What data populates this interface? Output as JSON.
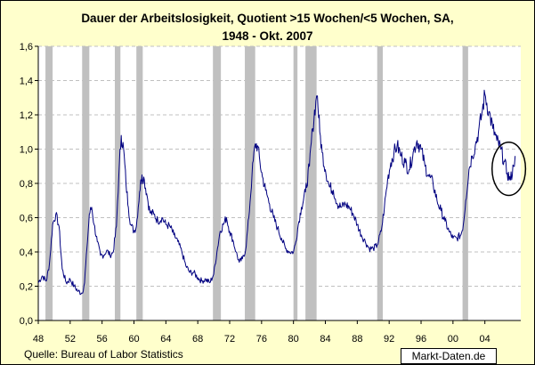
{
  "title": {
    "line1": "Dauer der Arbeitslosigkeit, Quotient >15 Wochen/<5 Wochen, SA,",
    "line2": "1948 - Okt. 2007"
  },
  "source": "Quelle: Bureau of Labor Statistics",
  "brand": "Markt-Daten.de",
  "colors": {
    "background": "#ffffcc",
    "plot_area": "#ffffff",
    "line": "#000080",
    "recession_band": "#c0c0c0",
    "gridline": "#c0c0c0"
  },
  "chart_data": {
    "type": "line",
    "title": "Dauer der Arbeitslosigkeit, Quotient >15 Wochen/<5 Wochen, SA, 1948 - Okt. 2007",
    "xlabel": "",
    "ylabel": "",
    "xlim": [
      1948,
      2008.5
    ],
    "ylim": [
      0,
      1.6
    ],
    "grid": true,
    "legend": "none",
    "x_tick_labels": [
      "48",
      "52",
      "56",
      "60",
      "64",
      "68",
      "72",
      "76",
      "80",
      "84",
      "88",
      "92",
      "96",
      "00",
      "04"
    ],
    "x_tick_values": [
      1948,
      1952,
      1956,
      1960,
      1964,
      1968,
      1972,
      1976,
      1980,
      1984,
      1988,
      1992,
      1996,
      2000,
      2004
    ],
    "y_tick_labels": [
      "0,0",
      "0,2",
      "0,4",
      "0,6",
      "0,8",
      "1,0",
      "1,2",
      "1,4",
      "1,6"
    ],
    "y_tick_values": [
      0,
      0.2,
      0.4,
      0.6,
      0.8,
      1.0,
      1.2,
      1.4,
      1.6
    ],
    "recession_bands": [
      [
        1948.9,
        1949.8
      ],
      [
        1953.5,
        1954.4
      ],
      [
        1957.6,
        1958.3
      ],
      [
        1960.3,
        1961.1
      ],
      [
        1969.9,
        1970.9
      ],
      [
        1973.9,
        1975.2
      ],
      [
        1980.0,
        1980.5
      ],
      [
        1981.5,
        1982.9
      ],
      [
        1990.5,
        1991.2
      ],
      [
        2001.2,
        2001.9
      ]
    ],
    "annotation": {
      "type": "ellipse",
      "x_center": 2007.0,
      "y_center": 0.885,
      "x_radius": 2.1,
      "y_radius": 0.155
    },
    "series": [
      {
        "x": [
          1948.0,
          1948.5,
          1949.0,
          1949.4,
          1949.8,
          1950.2,
          1950.6,
          1951.0,
          1951.5,
          1952.0,
          1952.5,
          1953.0,
          1953.5,
          1953.8,
          1954.1,
          1954.4,
          1954.7,
          1955.0,
          1955.4,
          1955.8,
          1956.2,
          1956.6,
          1957.0,
          1957.4,
          1957.8,
          1958.1,
          1958.4,
          1958.7,
          1959.0,
          1959.3,
          1959.6,
          1960.0,
          1960.3,
          1960.7,
          1961.0,
          1961.3,
          1961.6,
          1962.0,
          1962.5,
          1963.0,
          1963.5,
          1964.0,
          1964.5,
          1965.0,
          1965.5,
          1966.0,
          1966.5,
          1967.0,
          1967.5,
          1968.0,
          1968.5,
          1969.0,
          1969.5,
          1970.0,
          1970.4,
          1970.8,
          1971.2,
          1971.6,
          1972.0,
          1972.4,
          1972.8,
          1973.2,
          1973.6,
          1974.0,
          1974.4,
          1974.8,
          1975.2,
          1975.5,
          1975.8,
          1976.1,
          1976.5,
          1977.0,
          1977.5,
          1978.0,
          1978.5,
          1979.0,
          1979.5,
          1980.0,
          1980.3,
          1980.6,
          1981.0,
          1981.5,
          1982.0,
          1982.4,
          1982.8,
          1983.0,
          1983.3,
          1983.6,
          1984.0,
          1984.5,
          1985.0,
          1985.5,
          1986.0,
          1986.5,
          1987.0,
          1987.5,
          1988.0,
          1988.5,
          1989.0,
          1989.5,
          1990.0,
          1990.5,
          1991.0,
          1991.4,
          1991.8,
          1992.2,
          1992.6,
          1993.0,
          1993.5,
          1994.0,
          1994.5,
          1995.0,
          1995.5,
          1996.0,
          1996.5,
          1997.0,
          1997.5,
          1998.0,
          1998.5,
          1999.0,
          1999.5,
          2000.0,
          2000.5,
          2001.0,
          2001.3,
          2001.6,
          2002.0,
          2002.4,
          2002.8,
          2003.2,
          2003.6,
          2004.0,
          2004.5,
          2005.0,
          2005.5,
          2006.0,
          2006.4,
          2006.8,
          2007.2,
          2007.6,
          2007.8
        ],
        "values": [
          0.22,
          0.26,
          0.23,
          0.33,
          0.56,
          0.62,
          0.55,
          0.3,
          0.22,
          0.24,
          0.2,
          0.17,
          0.16,
          0.22,
          0.42,
          0.62,
          0.66,
          0.56,
          0.46,
          0.38,
          0.38,
          0.41,
          0.38,
          0.4,
          0.55,
          0.85,
          1.08,
          1.0,
          0.8,
          0.66,
          0.56,
          0.52,
          0.55,
          0.75,
          0.85,
          0.82,
          0.74,
          0.63,
          0.62,
          0.58,
          0.6,
          0.56,
          0.55,
          0.5,
          0.46,
          0.4,
          0.32,
          0.28,
          0.28,
          0.25,
          0.23,
          0.24,
          0.22,
          0.27,
          0.4,
          0.52,
          0.56,
          0.6,
          0.52,
          0.47,
          0.4,
          0.34,
          0.36,
          0.41,
          0.6,
          0.85,
          1.03,
          1.02,
          0.92,
          0.84,
          0.76,
          0.68,
          0.6,
          0.54,
          0.48,
          0.42,
          0.4,
          0.4,
          0.46,
          0.56,
          0.66,
          0.75,
          0.9,
          1.12,
          1.28,
          1.31,
          1.1,
          0.98,
          0.88,
          0.78,
          0.76,
          0.68,
          0.66,
          0.68,
          0.66,
          0.62,
          0.56,
          0.5,
          0.46,
          0.42,
          0.42,
          0.44,
          0.52,
          0.66,
          0.82,
          0.92,
          0.98,
          1.02,
          0.96,
          0.92,
          0.88,
          0.98,
          1.05,
          1.0,
          0.9,
          0.84,
          0.8,
          0.7,
          0.64,
          0.58,
          0.52,
          0.48,
          0.48,
          0.5,
          0.56,
          0.7,
          0.88,
          0.96,
          1.02,
          1.1,
          1.2,
          1.32,
          1.22,
          1.12,
          1.05,
          1.0,
          0.93,
          0.86,
          0.82,
          0.9,
          0.96
        ]
      }
    ]
  }
}
